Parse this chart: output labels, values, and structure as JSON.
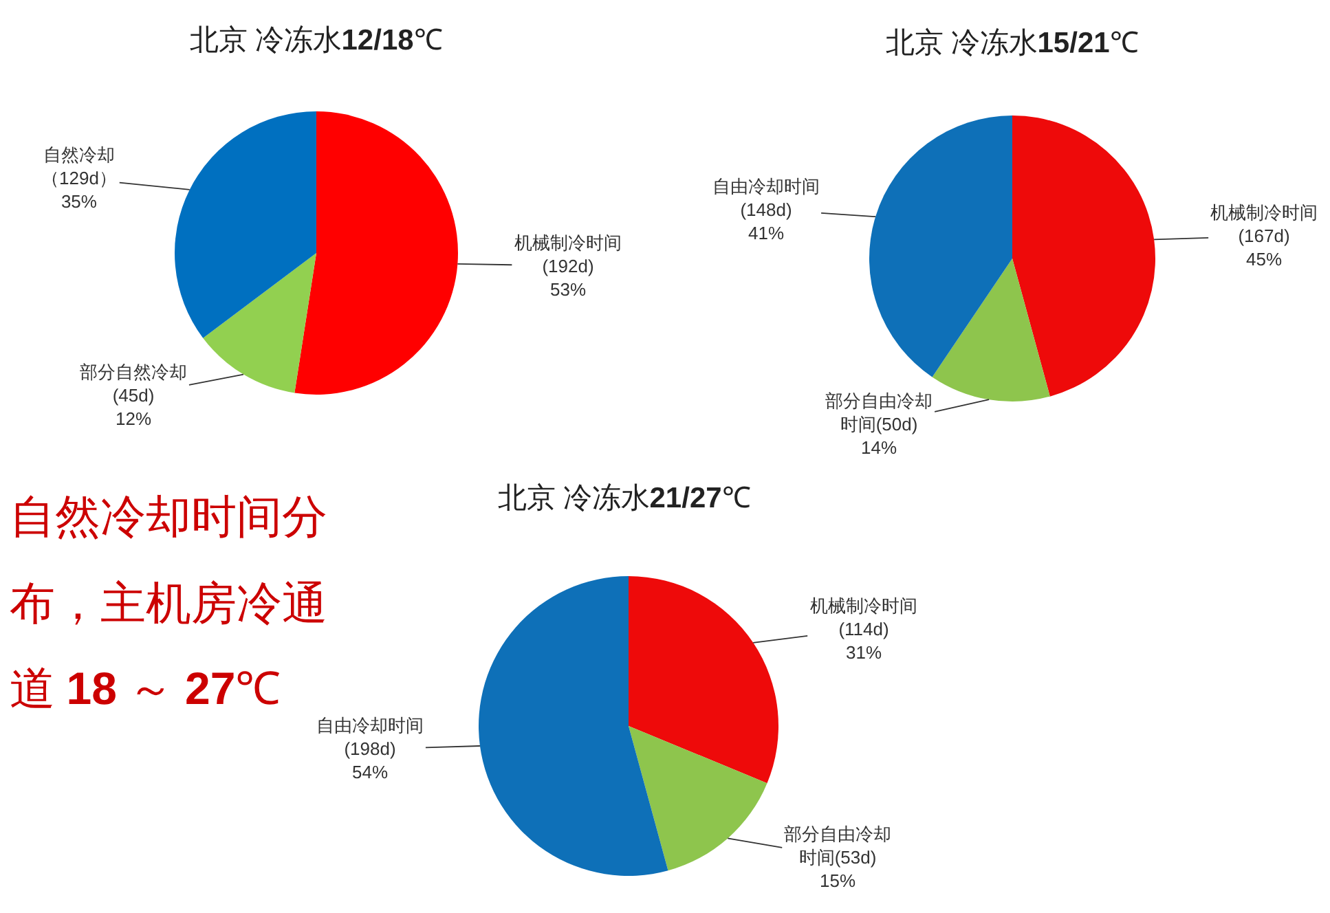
{
  "chart_data": [
    {
      "type": "pie",
      "title": "北京 冷冻水12/18℃",
      "categories": [
        "机械制冷时间",
        "部分自然冷却",
        "自然冷却"
      ],
      "values": [
        192,
        45,
        129
      ],
      "colors": [
        "#ff0000",
        "#92d050",
        "#0070c0"
      ],
      "value_labels": [
        "(192d) 53%",
        "(45d) 12%",
        "（129d） 35%"
      ]
    },
    {
      "type": "pie",
      "title": "北京 冷冻水15/21℃",
      "categories": [
        "机械制冷时间",
        "部分自由冷却时间",
        "自由冷却时间"
      ],
      "values": [
        167,
        50,
        148
      ],
      "colors": [
        "#ee0a0a",
        "#8ec54d",
        "#0e70b8"
      ],
      "value_labels": [
        "(167d) 45%",
        "(50d) 14%",
        "(148d) 41%"
      ]
    },
    {
      "type": "pie",
      "title": "北京 冷冻水21/27℃",
      "categories": [
        "机械制冷时间",
        "部分自由冷却时间",
        "自由冷却时间"
      ],
      "values": [
        114,
        53,
        198
      ],
      "colors": [
        "#ee0a0a",
        "#8ec54d",
        "#0e70b8"
      ],
      "value_labels": [
        "(114d) 31%",
        "(53d) 15%",
        "(198d) 54%"
      ]
    },
    {
      "type": "other",
      "annotations": [
        "自然冷却时间分布，主机房冷通道 18 ～ 27℃"
      ]
    }
  ]
}
